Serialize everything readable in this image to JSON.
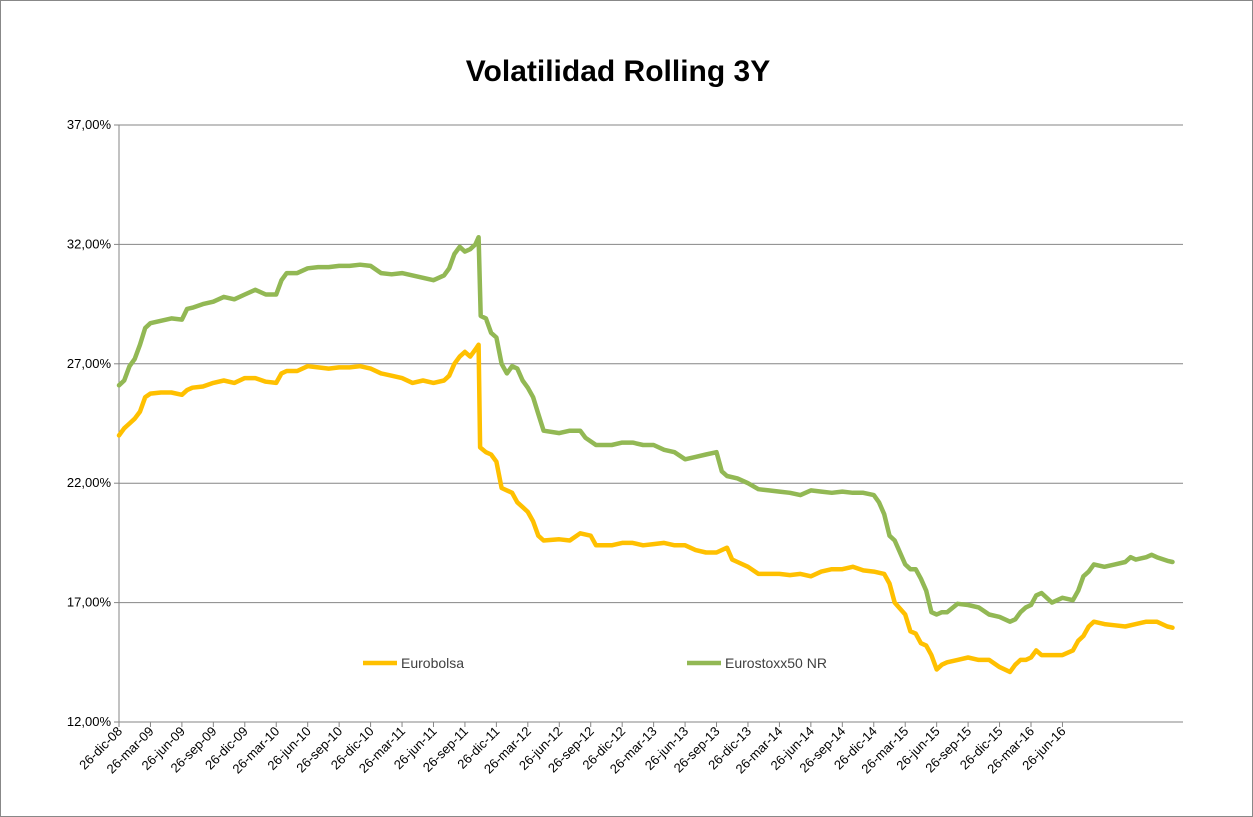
{
  "chart_data": {
    "type": "line",
    "title": "Volatilidad Rolling 3Y",
    "xlabel": "",
    "ylabel": "",
    "ylim": [
      12,
      37
    ],
    "yticks": [
      "12,00%",
      "17,00%",
      "22,00%",
      "27,00%",
      "32,00%",
      "37,00%"
    ],
    "ytick_values": [
      12,
      17,
      22,
      27,
      32,
      37
    ],
    "grid": true,
    "legend_position": "bottom-center",
    "x_start": "26-dic-08",
    "x_end": "26-sep-16",
    "x_months": 93,
    "xticks": [
      "26-dic-08",
      "26-mar-09",
      "26-jun-09",
      "26-sep-09",
      "26-dic-09",
      "26-mar-10",
      "26-jun-10",
      "26-sep-10",
      "26-dic-10",
      "26-mar-11",
      "26-jun-11",
      "26-sep-11",
      "26-dic-11",
      "26-mar-12",
      "26-jun-12",
      "26-sep-12",
      "26-dic-12",
      "26-mar-13",
      "26-jun-13",
      "26-sep-13",
      "26-dic-13",
      "26-mar-14",
      "26-jun-14",
      "26-sep-14",
      "26-dic-14",
      "26-mar-15",
      "26-jun-15",
      "26-sep-15",
      "26-dic-15",
      "26-mar-16",
      "26-jun-16"
    ],
    "series": [
      {
        "name": "Eurobolsa",
        "color": "#FFC000",
        "points": [
          [
            0,
            24.0
          ],
          [
            0.5,
            24.3
          ],
          [
            1.0,
            24.5
          ],
          [
            1.5,
            24.7
          ],
          [
            2.0,
            25.0
          ],
          [
            2.5,
            25.6
          ],
          [
            3.0,
            25.75
          ],
          [
            4.0,
            25.8
          ],
          [
            5.0,
            25.8
          ],
          [
            6.0,
            25.7
          ],
          [
            6.5,
            25.9
          ],
          [
            7.0,
            26.0
          ],
          [
            8.0,
            26.05
          ],
          [
            9.0,
            26.2
          ],
          [
            10.0,
            26.3
          ],
          [
            11.0,
            26.2
          ],
          [
            12.0,
            26.4
          ],
          [
            13.0,
            26.4
          ],
          [
            14.0,
            26.25
          ],
          [
            15.0,
            26.2
          ],
          [
            15.5,
            26.6
          ],
          [
            16.0,
            26.7
          ],
          [
            17.0,
            26.7
          ],
          [
            18.0,
            26.9
          ],
          [
            19.0,
            26.85
          ],
          [
            20.0,
            26.8
          ],
          [
            21.0,
            26.85
          ],
          [
            22.0,
            26.85
          ],
          [
            23.0,
            26.9
          ],
          [
            24.0,
            26.8
          ],
          [
            25.0,
            26.6
          ],
          [
            26.0,
            26.5
          ],
          [
            27.0,
            26.4
          ],
          [
            28.0,
            26.2
          ],
          [
            29.0,
            26.3
          ],
          [
            30.0,
            26.2
          ],
          [
            31.0,
            26.3
          ],
          [
            31.5,
            26.5
          ],
          [
            32.0,
            27.0
          ],
          [
            32.5,
            27.3
          ],
          [
            33.0,
            27.5
          ],
          [
            33.5,
            27.3
          ],
          [
            34.0,
            27.6
          ],
          [
            34.3,
            27.8
          ],
          [
            34.45,
            23.5
          ],
          [
            35.0,
            23.3
          ],
          [
            35.5,
            23.2
          ],
          [
            36.0,
            22.9
          ],
          [
            36.5,
            21.8
          ],
          [
            37.0,
            21.7
          ],
          [
            37.5,
            21.6
          ],
          [
            38.0,
            21.2
          ],
          [
            38.5,
            21.0
          ],
          [
            39.0,
            20.8
          ],
          [
            39.5,
            20.4
          ],
          [
            40.0,
            19.8
          ],
          [
            40.5,
            19.6
          ],
          [
            42.0,
            19.65
          ],
          [
            43.0,
            19.6
          ],
          [
            44.0,
            19.9
          ],
          [
            45.0,
            19.8
          ],
          [
            45.5,
            19.4
          ],
          [
            47.0,
            19.4
          ],
          [
            48.0,
            19.5
          ],
          [
            49.0,
            19.5
          ],
          [
            50.0,
            19.4
          ],
          [
            51.0,
            19.45
          ],
          [
            52.0,
            19.5
          ],
          [
            53.0,
            19.4
          ],
          [
            54.0,
            19.4
          ],
          [
            55.0,
            19.2
          ],
          [
            56.0,
            19.1
          ],
          [
            57.0,
            19.1
          ],
          [
            58.0,
            19.3
          ],
          [
            58.5,
            18.8
          ],
          [
            59.0,
            18.7
          ],
          [
            60.0,
            18.5
          ],
          [
            61.0,
            18.2
          ],
          [
            62.0,
            18.2
          ],
          [
            63.0,
            18.2
          ],
          [
            64.0,
            18.15
          ],
          [
            65.0,
            18.2
          ],
          [
            66.0,
            18.1
          ],
          [
            67.0,
            18.3
          ],
          [
            68.0,
            18.4
          ],
          [
            69.0,
            18.4
          ],
          [
            70.0,
            18.5
          ],
          [
            71.0,
            18.35
          ],
          [
            72.0,
            18.3
          ],
          [
            73.0,
            18.2
          ],
          [
            73.5,
            17.8
          ],
          [
            74.0,
            17.0
          ],
          [
            75.0,
            16.5
          ],
          [
            75.5,
            15.8
          ],
          [
            76.0,
            15.7
          ],
          [
            76.5,
            15.3
          ],
          [
            77.0,
            15.2
          ],
          [
            77.5,
            14.8
          ],
          [
            78.0,
            14.2
          ],
          [
            78.5,
            14.4
          ],
          [
            79.0,
            14.5
          ],
          [
            80.0,
            14.6
          ],
          [
            81.0,
            14.7
          ],
          [
            82.0,
            14.6
          ],
          [
            83.0,
            14.6
          ],
          [
            84.0,
            14.3
          ],
          [
            85.0,
            14.1
          ],
          [
            85.5,
            14.4
          ],
          [
            86.0,
            14.6
          ],
          [
            86.5,
            14.6
          ],
          [
            87.0,
            14.7
          ],
          [
            87.5,
            15.0
          ],
          [
            88.0,
            14.8
          ],
          [
            89.0,
            14.8
          ],
          [
            90.0,
            14.8
          ],
          [
            91.0,
            15.0
          ],
          [
            91.5,
            15.4
          ],
          [
            92.0,
            15.6
          ],
          [
            92.5,
            16.0
          ],
          [
            93.0,
            16.2
          ],
          [
            94.0,
            16.1
          ],
          [
            95.0,
            16.05
          ],
          [
            96.0,
            16.0
          ],
          [
            97.0,
            16.1
          ],
          [
            98.0,
            16.2
          ],
          [
            99.0,
            16.2
          ],
          [
            100.0,
            16.0
          ],
          [
            100.5,
            15.95
          ]
        ]
      },
      {
        "name": "Eurostoxx50 NR",
        "color": "#92B854",
        "points": [
          [
            0,
            26.1
          ],
          [
            0.5,
            26.3
          ],
          [
            1.0,
            26.9
          ],
          [
            1.5,
            27.2
          ],
          [
            2.0,
            27.8
          ],
          [
            2.5,
            28.5
          ],
          [
            3.0,
            28.7
          ],
          [
            4.0,
            28.8
          ],
          [
            5.0,
            28.9
          ],
          [
            6.0,
            28.85
          ],
          [
            6.5,
            29.3
          ],
          [
            7.0,
            29.35
          ],
          [
            8.0,
            29.5
          ],
          [
            9.0,
            29.6
          ],
          [
            10.0,
            29.8
          ],
          [
            11.0,
            29.7
          ],
          [
            12.0,
            29.9
          ],
          [
            13.0,
            30.1
          ],
          [
            14.0,
            29.9
          ],
          [
            15.0,
            29.9
          ],
          [
            15.5,
            30.5
          ],
          [
            16.0,
            30.8
          ],
          [
            17.0,
            30.8
          ],
          [
            18.0,
            31.0
          ],
          [
            19.0,
            31.05
          ],
          [
            20.0,
            31.05
          ],
          [
            21.0,
            31.1
          ],
          [
            22.0,
            31.1
          ],
          [
            23.0,
            31.15
          ],
          [
            24.0,
            31.1
          ],
          [
            25.0,
            30.8
          ],
          [
            26.0,
            30.75
          ],
          [
            27.0,
            30.8
          ],
          [
            28.0,
            30.7
          ],
          [
            29.0,
            30.6
          ],
          [
            30.0,
            30.5
          ],
          [
            31.0,
            30.7
          ],
          [
            31.5,
            31.0
          ],
          [
            32.0,
            31.6
          ],
          [
            32.5,
            31.9
          ],
          [
            33.0,
            31.7
          ],
          [
            33.5,
            31.8
          ],
          [
            34.0,
            32.0
          ],
          [
            34.3,
            32.3
          ],
          [
            34.5,
            29.0
          ],
          [
            35.0,
            28.9
          ],
          [
            35.5,
            28.3
          ],
          [
            36.0,
            28.1
          ],
          [
            36.5,
            27.0
          ],
          [
            37.0,
            26.6
          ],
          [
            37.5,
            26.9
          ],
          [
            38.0,
            26.8
          ],
          [
            38.5,
            26.3
          ],
          [
            39.0,
            26.0
          ],
          [
            39.5,
            25.6
          ],
          [
            40.0,
            24.9
          ],
          [
            40.5,
            24.2
          ],
          [
            42.0,
            24.1
          ],
          [
            43.0,
            24.2
          ],
          [
            44.0,
            24.2
          ],
          [
            44.5,
            23.9
          ],
          [
            45.5,
            23.6
          ],
          [
            47.0,
            23.6
          ],
          [
            48.0,
            23.7
          ],
          [
            49.0,
            23.7
          ],
          [
            50.0,
            23.6
          ],
          [
            51.0,
            23.6
          ],
          [
            52.0,
            23.4
          ],
          [
            53.0,
            23.3
          ],
          [
            54.0,
            23.0
          ],
          [
            55.0,
            23.1
          ],
          [
            56.0,
            23.2
          ],
          [
            57.0,
            23.3
          ],
          [
            57.5,
            22.5
          ],
          [
            58.0,
            22.3
          ],
          [
            59.0,
            22.2
          ],
          [
            60.0,
            22.0
          ],
          [
            61.0,
            21.75
          ],
          [
            62.0,
            21.7
          ],
          [
            63.0,
            21.65
          ],
          [
            64.0,
            21.6
          ],
          [
            65.0,
            21.5
          ],
          [
            66.0,
            21.7
          ],
          [
            67.0,
            21.65
          ],
          [
            68.0,
            21.6
          ],
          [
            69.0,
            21.65
          ],
          [
            70.0,
            21.6
          ],
          [
            71.0,
            21.6
          ],
          [
            72.0,
            21.5
          ],
          [
            72.5,
            21.2
          ],
          [
            73.0,
            20.7
          ],
          [
            73.5,
            19.8
          ],
          [
            74.0,
            19.6
          ],
          [
            74.5,
            19.1
          ],
          [
            75.0,
            18.6
          ],
          [
            75.5,
            18.4
          ],
          [
            76.0,
            18.4
          ],
          [
            76.5,
            18.0
          ],
          [
            77.0,
            17.5
          ],
          [
            77.5,
            16.6
          ],
          [
            78.0,
            16.5
          ],
          [
            78.5,
            16.6
          ],
          [
            79.0,
            16.6
          ],
          [
            80.0,
            16.95
          ],
          [
            81.0,
            16.9
          ],
          [
            82.0,
            16.8
          ],
          [
            83.0,
            16.5
          ],
          [
            84.0,
            16.4
          ],
          [
            85.0,
            16.2
          ],
          [
            85.5,
            16.3
          ],
          [
            86.0,
            16.6
          ],
          [
            86.5,
            16.8
          ],
          [
            87.0,
            16.9
          ],
          [
            87.5,
            17.3
          ],
          [
            88.0,
            17.4
          ],
          [
            89.0,
            17.0
          ],
          [
            90.0,
            17.2
          ],
          [
            91.0,
            17.1
          ],
          [
            91.5,
            17.5
          ],
          [
            92.0,
            18.1
          ],
          [
            92.5,
            18.3
          ],
          [
            93.0,
            18.6
          ],
          [
            94.0,
            18.5
          ],
          [
            95.0,
            18.6
          ],
          [
            96.0,
            18.7
          ],
          [
            96.5,
            18.9
          ],
          [
            97.0,
            18.8
          ],
          [
            98.0,
            18.9
          ],
          [
            98.5,
            19.0
          ],
          [
            99.0,
            18.9
          ],
          [
            100.0,
            18.75
          ],
          [
            100.5,
            18.7
          ]
        ]
      }
    ]
  }
}
